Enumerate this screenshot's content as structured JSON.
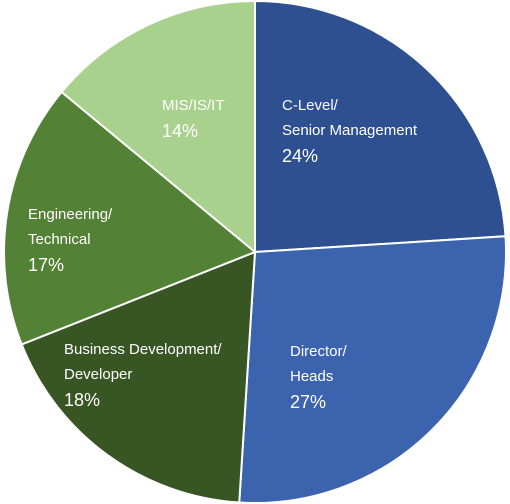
{
  "chart_data": {
    "type": "pie",
    "slices": [
      {
        "label_lines": [
          "C-Level/",
          "Senior Management"
        ],
        "value_label": "24%",
        "value": 24,
        "color": "#2e5090"
      },
      {
        "label_lines": [
          "Director/",
          "Heads"
        ],
        "value_label": "27%",
        "value": 27,
        "color": "#3c63ae"
      },
      {
        "label_lines": [
          "Business Development/",
          "Developer"
        ],
        "value_label": "18%",
        "value": 18,
        "color": "#375623"
      },
      {
        "label_lines": [
          "Engineering/",
          "Technical"
        ],
        "value_label": "17%",
        "value": 17,
        "color": "#538135"
      },
      {
        "label_lines": [
          "MIS/IS/IT"
        ],
        "value_label": "14%",
        "value": 14,
        "color": "#a9d18e"
      }
    ],
    "start_angle_deg": 0,
    "direction": "clockwise",
    "slice_border_color": "#ffffff",
    "legend": "none",
    "data_labels": "inside"
  }
}
